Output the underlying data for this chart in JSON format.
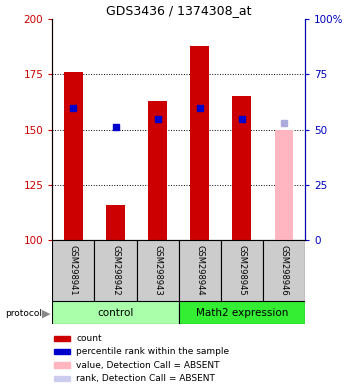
{
  "title": "GDS3436 / 1374308_at",
  "samples": [
    "GSM298941",
    "GSM298942",
    "GSM298943",
    "GSM298944",
    "GSM298945",
    "GSM298946"
  ],
  "bar_values": [
    176,
    116,
    163,
    188,
    165,
    150
  ],
  "bar_colors": [
    "#CC0000",
    "#CC0000",
    "#CC0000",
    "#CC0000",
    "#CC0000",
    "#FFB6C1"
  ],
  "rank_values": [
    160,
    151,
    155,
    160,
    155,
    153
  ],
  "rank_colors": [
    "#0000CC",
    "#0000CC",
    "#0000CC",
    "#0000CC",
    "#0000CC",
    "#AAAADD"
  ],
  "rank_marker_size": 4,
  "ylim_left": [
    100,
    200
  ],
  "ylim_right": [
    0,
    100
  ],
  "yticks_left": [
    100,
    125,
    150,
    175,
    200
  ],
  "yticks_right": [
    0,
    25,
    50,
    75,
    100
  ],
  "ytick_labels_left": [
    "100",
    "125",
    "150",
    "175",
    "200"
  ],
  "ytick_labels_right": [
    "0",
    "25",
    "50",
    "75",
    "100%"
  ],
  "grid_values": [
    125,
    150,
    175
  ],
  "left_axis_color": "#CC0000",
  "right_axis_color": "#0000BB",
  "bar_width": 0.45,
  "control_color": "#AAFFAA",
  "math_color": "#33EE33",
  "sample_box_color": "#CCCCCC",
  "legend_items": [
    {
      "color": "#CC0000",
      "label": "count"
    },
    {
      "color": "#0000CC",
      "label": "percentile rank within the sample"
    },
    {
      "color": "#FFB6C1",
      "label": "value, Detection Call = ABSENT"
    },
    {
      "color": "#CCCCEE",
      "label": "rank, Detection Call = ABSENT"
    }
  ]
}
